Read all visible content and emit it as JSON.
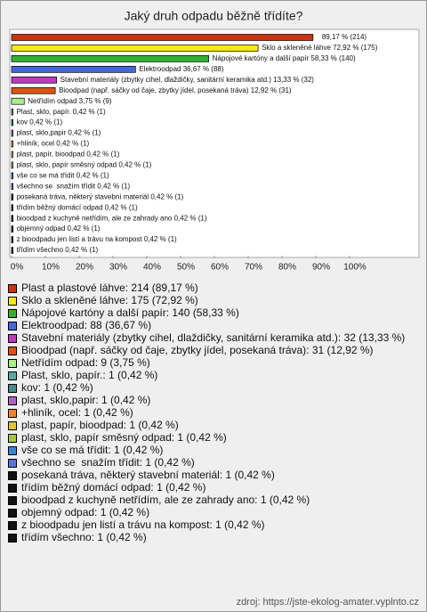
{
  "chart_data": {
    "type": "bar",
    "orientation": "horizontal",
    "title": "Jaký druh odpadu běžně třídíte?",
    "categories": [
      "Plast a plastové láhve",
      "Sklo a skleněné láhve",
      "Nápojové kartóny a další papír",
      "Elektroodpad",
      "Stavební materiály (zbytky cihel, dlaždičky, sanitární keramika atd.)",
      "Bioodpad (např. sáčky od čaje, zbytky jídel, posekaná tráva)",
      "Netřídím odpad",
      "Plast, sklo, papír.:",
      "kov",
      "plast, sklo,papir",
      "+hliník, ocel",
      "plast, papír, bioodpad",
      "plast, sklo, papír směsný odpad",
      "vše co se má třídit",
      "všechno se  snažím třídit",
      "posekaná tráva, některý stavební materiál",
      "třídím běžný domácí odpad",
      "bioodpad z kuchyně netřídím, ale ze zahrady ano",
      "objemný odpad",
      "z bioodpadu jen listí a trávu na kompost",
      "třídím všechno"
    ],
    "values": [
      89.17,
      72.92,
      58.33,
      36.67,
      13.33,
      12.92,
      3.75,
      0.42,
      0.42,
      0.42,
      0.42,
      0.42,
      0.42,
      0.42,
      0.42,
      0.42,
      0.42,
      0.42,
      0.42,
      0.42,
      0.42
    ],
    "value_labels": [
      "89,17 % (214)",
      "Sklo a skleněné láhve 72,92 % (175)",
      "Nápojové kartóny a další papír 58,33 % (140)",
      "Elektroodpad 36,67 % (88)",
      "Stavební materiály (zbytky cihel, dlaždičky, sanitární keramika atd.) 13,33 % (32)",
      "Bioodpad (např. sáčky od čaje, zbytky jídel, posekaná tráva) 12,92 % (31)",
      "Netřídím odpad 3,75 % (9)",
      "Plast, sklo, papír. 0,42 % (1)",
      "kov 0,42 % (1)",
      "plast, sklo,papir 0,42 % (1)",
      "+hliník, ocel 0,42 % (1)",
      "plast, papír, bioodpad 0,42 % (1)",
      "plast, sklo, papír směsný odpad 0,42 % (1)",
      "vše co se má třídit 0,42 % (1)",
      "všechno se  snažím třídit 0,42 % (1)",
      "posekaná tráva, některý stavební materiál 0,42 % (1)",
      "třídím běžný domácí odpad 0,42 % (1)",
      "bioodpad z kuchyně netřídím, ale ze zahrady ano 0,42 % (1)",
      "objemný odpad 0,42 % (1)",
      "z bioodpadu jen listí a trávu na kompost 0,42 % (1)",
      "třídím všechno 0,42 % (1)"
    ],
    "legend_labels": [
      "Plast a plastové láhve: 214 (89,17 %)",
      "Sklo a skleněné láhve: 175 (72,92 %)",
      "Nápojové kartóny a další papír: 140 (58,33 %)",
      "Elektroodpad: 88 (36,67 %)",
      "Stavební materiály (zbytky cihel, dlaždičky, sanitární keramika atd.): 32 (13,33 %)",
      "Bioodpad (např. sáčky od čaje, zbytky jídel, posekaná tráva): 31 (12,92 %)",
      "Netřídím odpad: 9 (3,75 %)",
      "Plast, sklo, papír.: 1 (0,42 %)",
      "kov: 1 (0,42 %)",
      "plast, sklo,papir: 1 (0,42 %)",
      "+hliník, ocel: 1 (0,42 %)",
      "plast, papír, bioodpad: 1 (0,42 %)",
      "plast, sklo, papír směsný odpad: 1 (0,42 %)",
      "vše co se má třídit: 1 (0,42 %)",
      "všechno se  snažím třídit: 1 (0,42 %)",
      "posekaná tráva, některý stavební materiál: 1 (0,42 %)",
      "třídím běžný domácí odpad: 1 (0,42 %)",
      "bioodpad z kuchyně netřídím, ale ze zahrady ano: 1 (0,42 %)",
      "objemný odpad: 1 (0,42 %)",
      "z bioodpadu jen listí a trávu na kompost: 1 (0,42 %)",
      "třídím všechno: 1 (0,42 %)"
    ],
    "colors": [
      "#cc3311",
      "#f5e61e",
      "#33b033",
      "#4466dd",
      "#c03ac0",
      "#d85515",
      "#a8f08a",
      "#5aaa9a",
      "#4a8a8a",
      "#b064c4",
      "#f08428",
      "#e0c040",
      "#a4c844",
      "#3a84d4",
      "#5a74d4",
      "#111111",
      "#111111",
      "#111111",
      "#111111",
      "#111111",
      "#111111"
    ],
    "xlim": [
      0,
      120
    ],
    "xticks": [
      {
        "value": 0,
        "label": "0%"
      },
      {
        "value": 10,
        "label": "10%"
      },
      {
        "value": 20,
        "label": "20%"
      },
      {
        "value": 30,
        "label": "30%"
      },
      {
        "value": 40,
        "label": "40%"
      },
      {
        "value": 50,
        "label": "50%"
      },
      {
        "value": 60,
        "label": "60%"
      },
      {
        "value": 70,
        "label": "70%"
      },
      {
        "value": 80,
        "label": "80%"
      },
      {
        "value": 90,
        "label": "90%"
      },
      {
        "value": 100,
        "label": "100%"
      }
    ],
    "source": "zdroj: https://jste-ekolog-amater.vyplnto.cz"
  }
}
